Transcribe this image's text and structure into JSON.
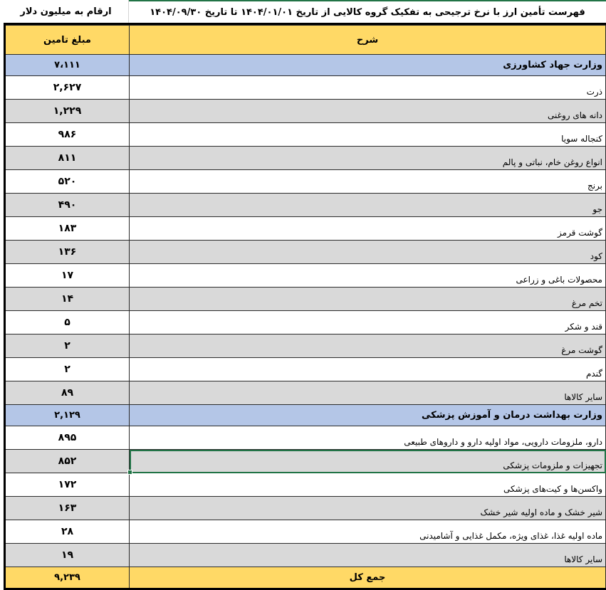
{
  "title": "فهرست تأمین ارز با نرخ ترجیحی به تفکیک گروه کالایی از تاریخ ۱۴۰۴/۰۱/۰۱ تا تاریخ ۱۴۰۴/۰۹/۳۰",
  "unit_note": "ارقام به میلیون دلار",
  "columns": {
    "description": "شرح",
    "amount": "مبلغ تامین"
  },
  "groups": [
    {
      "name": "وزارت جهاد کشاورزی",
      "total": "۷،۱۱۱",
      "items": [
        {
          "name": "ذرت",
          "amount": "۲,۶۲۷"
        },
        {
          "name": "دانه های روغنی",
          "amount": "۱,۲۲۹"
        },
        {
          "name": "کنجاله سویا",
          "amount": "۹۸۶"
        },
        {
          "name": "انواع روغن خام، نباتی و پالم",
          "amount": "۸۱۱"
        },
        {
          "name": "برنج",
          "amount": "۵۲۰"
        },
        {
          "name": "جو",
          "amount": "۴۹۰"
        },
        {
          "name": "گوشت قرمز",
          "amount": "۱۸۳"
        },
        {
          "name": "کود",
          "amount": "۱۳۶"
        },
        {
          "name": "محصولات باغی و زراعی",
          "amount": "۱۷"
        },
        {
          "name": "تخم مرغ",
          "amount": "۱۴"
        },
        {
          "name": "قند و شکر",
          "amount": "۵"
        },
        {
          "name": "گوشت مرغ",
          "amount": "۲"
        },
        {
          "name": "گندم",
          "amount": "۲"
        },
        {
          "name": "سایر کالاها",
          "amount": "۸۹"
        }
      ]
    },
    {
      "name": "وزارت بهداشت درمان و آموزش پزشکی",
      "total": "۲,۱۲۹",
      "items": [
        {
          "name": "دارو، ملزومات دارویی، مواد اولیه دارو و داروهای طبیعی",
          "amount": "۸۹۵"
        },
        {
          "name": "تجهیزات و ملزومات پزشکی",
          "amount": "۸۵۲"
        },
        {
          "name": "واکسن‌ها و کیت‌های پزشکی",
          "amount": "۱۷۲"
        },
        {
          "name": "شیر خشک و ماده اولیه شیر خشک",
          "amount": "۱۶۳"
        },
        {
          "name": "ماده اولیه غذا، غذای ویژه، مکمل غذایی و آشامیدنی",
          "amount": "۲۸"
        },
        {
          "name": "سایر کالاها",
          "amount": "۱۹"
        }
      ]
    }
  ],
  "grand_total": {
    "label": "جمع کل",
    "amount": "۹,۲۳۹"
  },
  "colors": {
    "header": "#ffd966",
    "group": "#b4c6e7",
    "alt_row": "#d9d9d9",
    "selection": "#217346"
  }
}
